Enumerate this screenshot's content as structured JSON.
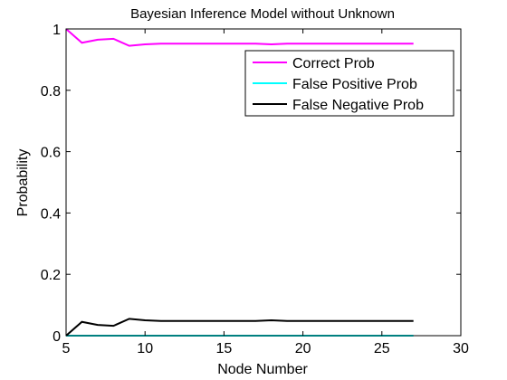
{
  "chart_data": {
    "type": "line",
    "title": "Bayesian Inference Model without Unknown",
    "xlabel": "Node Number",
    "ylabel": "Probability",
    "xlim": [
      5,
      30
    ],
    "ylim": [
      0,
      1
    ],
    "xticks": [
      5,
      10,
      15,
      20,
      25,
      30
    ],
    "yticks": [
      0,
      0.2,
      0.4,
      0.6,
      0.8,
      1
    ],
    "xtick_labels": [
      "5",
      "10",
      "15",
      "20",
      "25",
      "30"
    ],
    "ytick_labels": [
      "0",
      "0.2",
      "0.4",
      "0.6",
      "0.8",
      "1"
    ],
    "grid": false,
    "legend_position": "top-right",
    "series": [
      {
        "name": "Correct Prob",
        "color": "#ff00ff",
        "x": [
          5,
          6,
          7,
          8,
          9,
          10,
          11,
          12,
          13,
          14,
          15,
          16,
          17,
          18,
          19,
          20,
          21,
          22,
          23,
          24,
          25,
          26,
          27
        ],
        "y": [
          1.0,
          0.955,
          0.965,
          0.968,
          0.945,
          0.95,
          0.952,
          0.952,
          0.952,
          0.952,
          0.952,
          0.952,
          0.952,
          0.95,
          0.952,
          0.952,
          0.952,
          0.952,
          0.952,
          0.952,
          0.952,
          0.952,
          0.952
        ]
      },
      {
        "name": "False Positive Prob",
        "color": "#00ffff",
        "x": [
          5,
          6,
          7,
          8,
          9,
          10,
          11,
          12,
          13,
          14,
          15,
          16,
          17,
          18,
          19,
          20,
          21,
          22,
          23,
          24,
          25,
          26,
          27
        ],
        "y": [
          0,
          0,
          0,
          0,
          0,
          0,
          0,
          0,
          0,
          0,
          0,
          0,
          0,
          0,
          0,
          0,
          0,
          0,
          0,
          0,
          0,
          0,
          0
        ]
      },
      {
        "name": "False Negative Prob",
        "color": "#000000",
        "x": [
          5,
          6,
          7,
          8,
          9,
          10,
          11,
          12,
          13,
          14,
          15,
          16,
          17,
          18,
          19,
          20,
          21,
          22,
          23,
          24,
          25,
          26,
          27
        ],
        "y": [
          0.0,
          0.045,
          0.035,
          0.032,
          0.055,
          0.05,
          0.048,
          0.048,
          0.048,
          0.048,
          0.048,
          0.048,
          0.048,
          0.05,
          0.048,
          0.048,
          0.048,
          0.048,
          0.048,
          0.048,
          0.048,
          0.048,
          0.048
        ]
      }
    ]
  }
}
